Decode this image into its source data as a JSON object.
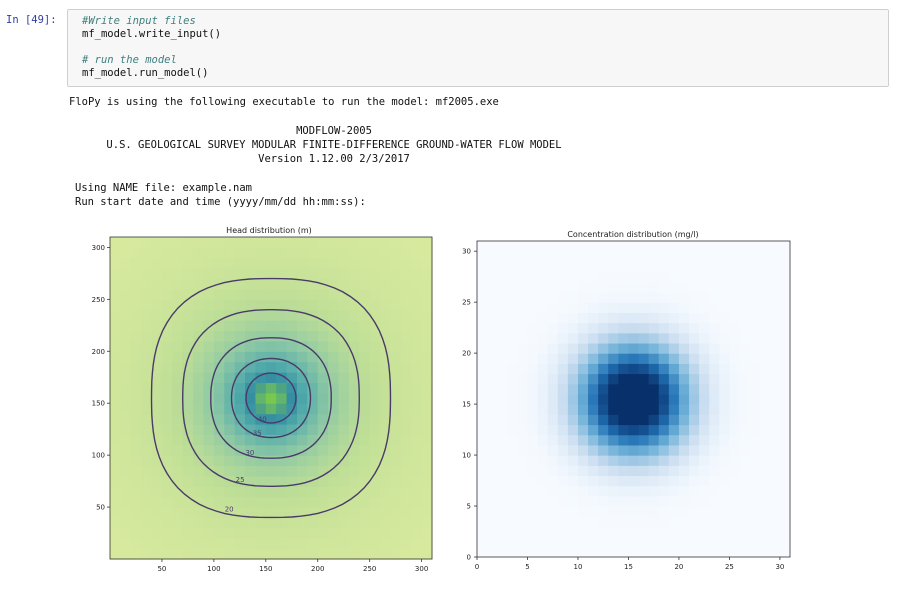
{
  "cell": {
    "prompt": "In [49]:",
    "code": [
      {
        "text": "#Write input files",
        "kind": "comment"
      },
      {
        "text": "mf_model.write_input()",
        "kind": "code"
      },
      {
        "text": "# run the model",
        "kind": "comment"
      },
      {
        "text": "mf_model.run_model()",
        "kind": "code"
      }
    ]
  },
  "output": {
    "exec_line": "FloPy is using the following executable to run the model: mf2005.exe",
    "banner": [
      "MODFLOW-2005",
      "U.S. GEOLOGICAL SURVEY MODULAR FINITE-DIFFERENCE GROUND-WATER FLOW MODEL",
      "Version 1.12.00 2/3/2017"
    ],
    "name_file": "Using NAME file: example.nam",
    "start_time": "Run start date and time (yyyy/mm/dd hh:mm:ss):"
  },
  "colors": {
    "prompt": "#303f9f",
    "contour": "#4a3a6a",
    "head_low": "#dfeda0",
    "conc_max": "#08306b"
  },
  "chart_data": [
    {
      "type": "heatmap",
      "title": "Head distribution (m)",
      "xlim": [
        0,
        310
      ],
      "ylim": [
        0,
        310
      ],
      "xticks": [
        50,
        100,
        150,
        200,
        250,
        300
      ],
      "yticks": [
        50,
        100,
        150,
        200,
        250,
        300
      ],
      "center": [
        155,
        155
      ],
      "contour_levels": [
        20,
        25,
        30,
        35,
        40
      ],
      "contour_radii": [
        115,
        85,
        58,
        38,
        24
      ],
      "colormap": "viridis-light"
    },
    {
      "type": "heatmap",
      "title": "Concentration distribution (mg/l)",
      "xlim": [
        0,
        31
      ],
      "ylim": [
        0,
        31
      ],
      "xticks": [
        0,
        5,
        10,
        15,
        20,
        25,
        30
      ],
      "yticks": [
        0,
        5,
        10,
        15,
        20,
        25,
        30
      ],
      "center": [
        15.5,
        15.5
      ],
      "sigma": 3.6,
      "colormap": "Blues"
    }
  ]
}
